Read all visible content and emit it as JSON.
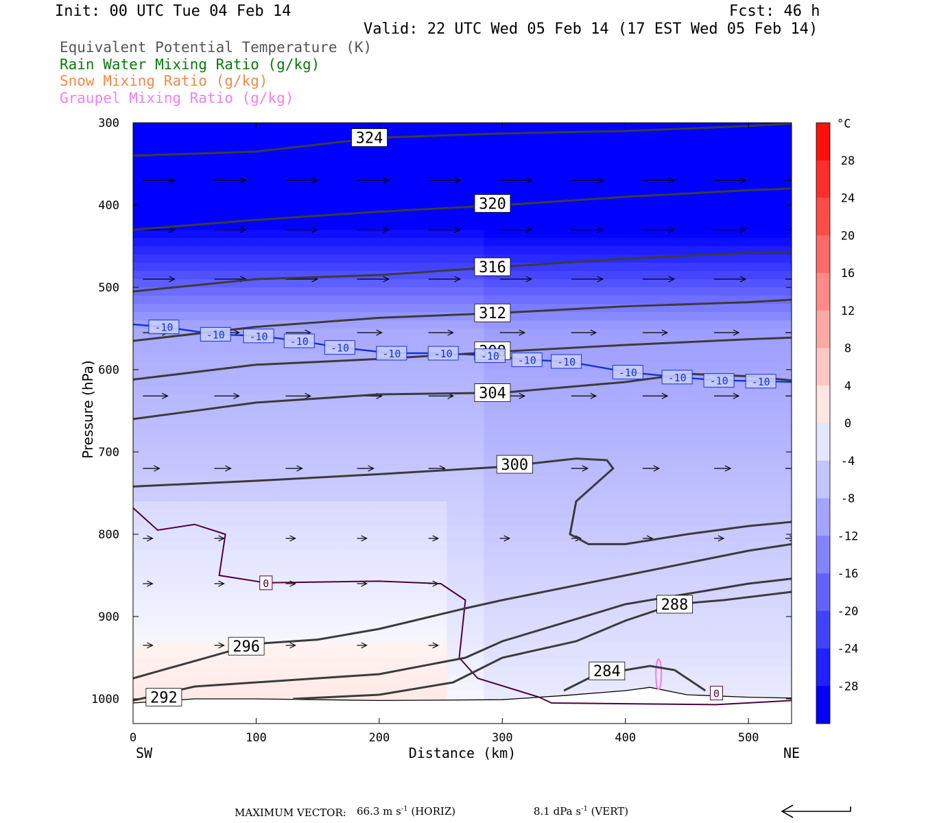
{
  "header": {
    "init": "Init: 00 UTC Tue 04 Feb 14",
    "fcst": "Fcst:   46 h",
    "valid": "Valid: 22 UTC Wed 05 Feb 14 (17 EST Wed 05 Feb 14)"
  },
  "legend": [
    {
      "label": "Equivalent Potential Temperature (K)",
      "color": "#555555"
    },
    {
      "label": "Rain Water Mixing Ratio (g/kg)",
      "color": "#0a7a0a"
    },
    {
      "label": "Snow Mixing Ratio (g/kg)",
      "color": "#f08a4b"
    },
    {
      "label": "Graupel Mixing Ratio (g/kg)",
      "color": "#ee82ee"
    }
  ],
  "chart_data": {
    "type": "heatmap",
    "xlabel": "Distance (km)",
    "ylabel": "Pressure (hPa)",
    "xlim": [
      0,
      535
    ],
    "ylim": [
      1030,
      300
    ],
    "x_ticks": [
      0,
      100,
      200,
      300,
      400,
      500
    ],
    "y_ticks": [
      300,
      400,
      500,
      600,
      700,
      800,
      900,
      1000
    ],
    "x_end_labels": {
      "left": "SW",
      "right": "NE"
    },
    "colorbar": {
      "unit": "°C",
      "range": [
        -32,
        32
      ],
      "step": 4,
      "labels": [
        28,
        24,
        20,
        16,
        12,
        8,
        4,
        0,
        -4,
        -8,
        -12,
        -16,
        -20,
        -24,
        -28
      ]
    },
    "theta_e_contours": [
      {
        "value": 324,
        "label_at": [
          192,
          318
        ],
        "points": [
          [
            0,
            340
          ],
          [
            100,
            335
          ],
          [
            200,
            318
          ],
          [
            300,
            313
          ],
          [
            400,
            310
          ],
          [
            500,
            304
          ],
          [
            535,
            301
          ]
        ]
      },
      {
        "value": 320,
        "label_at": [
          292,
          398
        ],
        "points": [
          [
            0,
            430
          ],
          [
            100,
            418
          ],
          [
            200,
            408
          ],
          [
            300,
            400
          ],
          [
            400,
            390
          ],
          [
            500,
            382
          ],
          [
            535,
            380
          ]
        ]
      },
      {
        "value": 316,
        "label_at": [
          292,
          475
        ],
        "points": [
          [
            0,
            505
          ],
          [
            100,
            490
          ],
          [
            200,
            485
          ],
          [
            300,
            475
          ],
          [
            400,
            465
          ],
          [
            500,
            458
          ],
          [
            535,
            457
          ]
        ]
      },
      {
        "value": 312,
        "label_at": [
          292,
          531
        ],
        "points": [
          [
            0,
            565
          ],
          [
            100,
            548
          ],
          [
            200,
            537
          ],
          [
            300,
            531
          ],
          [
            400,
            523
          ],
          [
            500,
            518
          ],
          [
            535,
            515
          ]
        ]
      },
      {
        "value": 308,
        "label_at": [
          292,
          577
        ],
        "points": [
          [
            0,
            612
          ],
          [
            100,
            594
          ],
          [
            200,
            587
          ],
          [
            300,
            578
          ],
          [
            400,
            570
          ],
          [
            500,
            563
          ],
          [
            535,
            561
          ]
        ]
      },
      {
        "value": 304,
        "label_at": [
          292,
          628
        ],
        "points": [
          [
            0,
            660
          ],
          [
            100,
            640
          ],
          [
            200,
            630
          ],
          [
            300,
            628
          ],
          [
            400,
            615
          ],
          [
            450,
            605
          ],
          [
            500,
            608
          ],
          [
            535,
            613
          ]
        ]
      },
      {
        "value": 300,
        "label_at": [
          310,
          715
        ],
        "points": [
          [
            0,
            742
          ],
          [
            100,
            735
          ],
          [
            200,
            727
          ],
          [
            300,
            718
          ],
          [
            360,
            708
          ],
          [
            385,
            710
          ],
          [
            390,
            720
          ],
          [
            360,
            760
          ],
          [
            355,
            800
          ],
          [
            370,
            812
          ],
          [
            400,
            812
          ],
          [
            450,
            800
          ],
          [
            500,
            790
          ],
          [
            535,
            785
          ]
        ]
      },
      {
        "value": 296,
        "label_at": [
          92,
          936
        ],
        "points": [
          [
            0,
            975
          ],
          [
            100,
            933
          ],
          [
            150,
            928
          ],
          [
            200,
            915
          ],
          [
            270,
            890
          ],
          [
            300,
            880
          ],
          [
            400,
            850
          ],
          [
            500,
            820
          ],
          [
            535,
            812
          ]
        ]
      },
      {
        "value": 292,
        "label_at": [
          25,
          998
        ],
        "points": [
          [
            0,
            1002
          ],
          [
            50,
            985
          ],
          [
            150,
            975
          ],
          [
            200,
            970
          ],
          [
            270,
            950
          ],
          [
            300,
            930
          ],
          [
            400,
            885
          ],
          [
            500,
            860
          ],
          [
            535,
            854
          ]
        ]
      },
      {
        "value": 288,
        "label_at": [
          440,
          885
        ],
        "points": [
          [
            130,
            1000
          ],
          [
            200,
            995
          ],
          [
            260,
            980
          ],
          [
            300,
            950
          ],
          [
            360,
            930
          ],
          [
            400,
            905
          ],
          [
            440,
            885
          ],
          [
            480,
            880
          ],
          [
            535,
            870
          ]
        ]
      },
      {
        "value": 284,
        "label_at": [
          385,
          966
        ],
        "points": [
          [
            350,
            990
          ],
          [
            370,
            975
          ],
          [
            400,
            965
          ],
          [
            420,
            960
          ],
          [
            440,
            965
          ],
          [
            455,
            980
          ],
          [
            465,
            990
          ]
        ]
      }
    ],
    "temperature_contours": [
      {
        "value": -10,
        "label_positions": [
          [
            25,
            548
          ],
          [
            67,
            557
          ],
          [
            102,
            559
          ],
          [
            135,
            565
          ],
          [
            168,
            573
          ],
          [
            210,
            580
          ],
          [
            252,
            580
          ],
          [
            290,
            583
          ],
          [
            320,
            588
          ],
          [
            352,
            590
          ],
          [
            402,
            603
          ],
          [
            442,
            609
          ],
          [
            476,
            613
          ],
          [
            510,
            614
          ]
        ]
      },
      {
        "value": 0,
        "label_positions": [
          [
            108,
            859
          ],
          [
            474,
            993
          ]
        ]
      }
    ]
  },
  "footer": {
    "max_vector_label": "MAXIMUM VECTOR:",
    "horiz_value": "66.3 m s",
    "horiz_exp": "-1",
    "horiz_tag": " (HORIZ)",
    "vert_value": "8.1 dPa s",
    "vert_exp": "-1",
    "vert_tag": " (VERT)"
  }
}
